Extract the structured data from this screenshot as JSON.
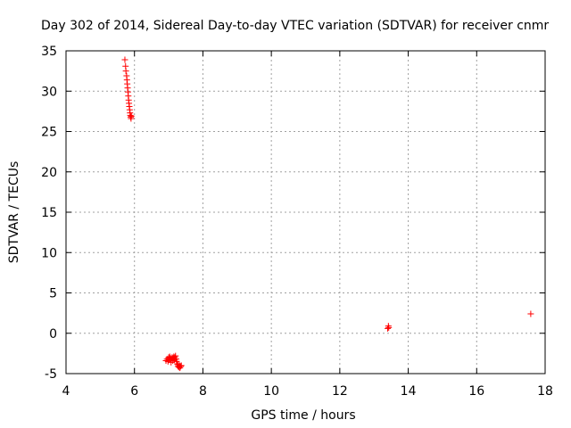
{
  "chart_data": {
    "type": "scatter",
    "title": "Day 302 of 2014, Sidereal Day-to-day VTEC variation (SDTVAR) for receiver cnmr",
    "xlabel": "GPS time / hours",
    "ylabel": "SDTVAR / TECUs",
    "xlim": [
      4,
      18
    ],
    "ylim": [
      -5,
      35
    ],
    "xticks": [
      4,
      6,
      8,
      10,
      12,
      14,
      16,
      18
    ],
    "yticks": [
      -5,
      0,
      5,
      10,
      15,
      20,
      25,
      30,
      35
    ],
    "grid": true,
    "marker": "+",
    "color": "#ff0000",
    "series": [
      {
        "x": [
          5.72,
          5.74,
          5.75,
          5.77,
          5.78,
          5.79,
          5.8,
          5.81,
          5.82,
          5.83,
          5.84,
          5.85,
          5.86,
          5.87,
          5.88,
          5.89,
          5.9,
          5.91,
          6.92,
          6.95,
          6.98,
          7.0,
          7.02,
          7.03,
          7.05,
          7.07,
          7.08,
          7.1,
          7.12,
          7.13,
          7.15,
          7.17,
          7.18,
          7.2,
          7.22,
          7.23,
          7.25,
          7.27,
          7.28,
          7.3,
          7.32,
          7.33,
          7.35,
          7.37,
          13.4,
          13.42,
          13.43,
          17.58
        ],
        "y": [
          33.9,
          33.1,
          32.5,
          31.9,
          31.4,
          30.9,
          30.4,
          29.9,
          29.4,
          28.9,
          28.5,
          28.1,
          27.7,
          27.3,
          27.0,
          26.8,
          26.6,
          26.9,
          -3.4,
          -3.2,
          -3.5,
          -3.0,
          -3.3,
          -2.9,
          -3.1,
          -3.6,
          -3.2,
          -3.0,
          -3.4,
          -3.1,
          -2.9,
          -3.3,
          -3.0,
          -2.8,
          -3.2,
          -3.5,
          -3.8,
          -4.1,
          -3.9,
          -4.2,
          -4.0,
          -4.3,
          -4.1,
          -4.0,
          0.6,
          0.9,
          0.7,
          2.4
        ]
      }
    ]
  }
}
